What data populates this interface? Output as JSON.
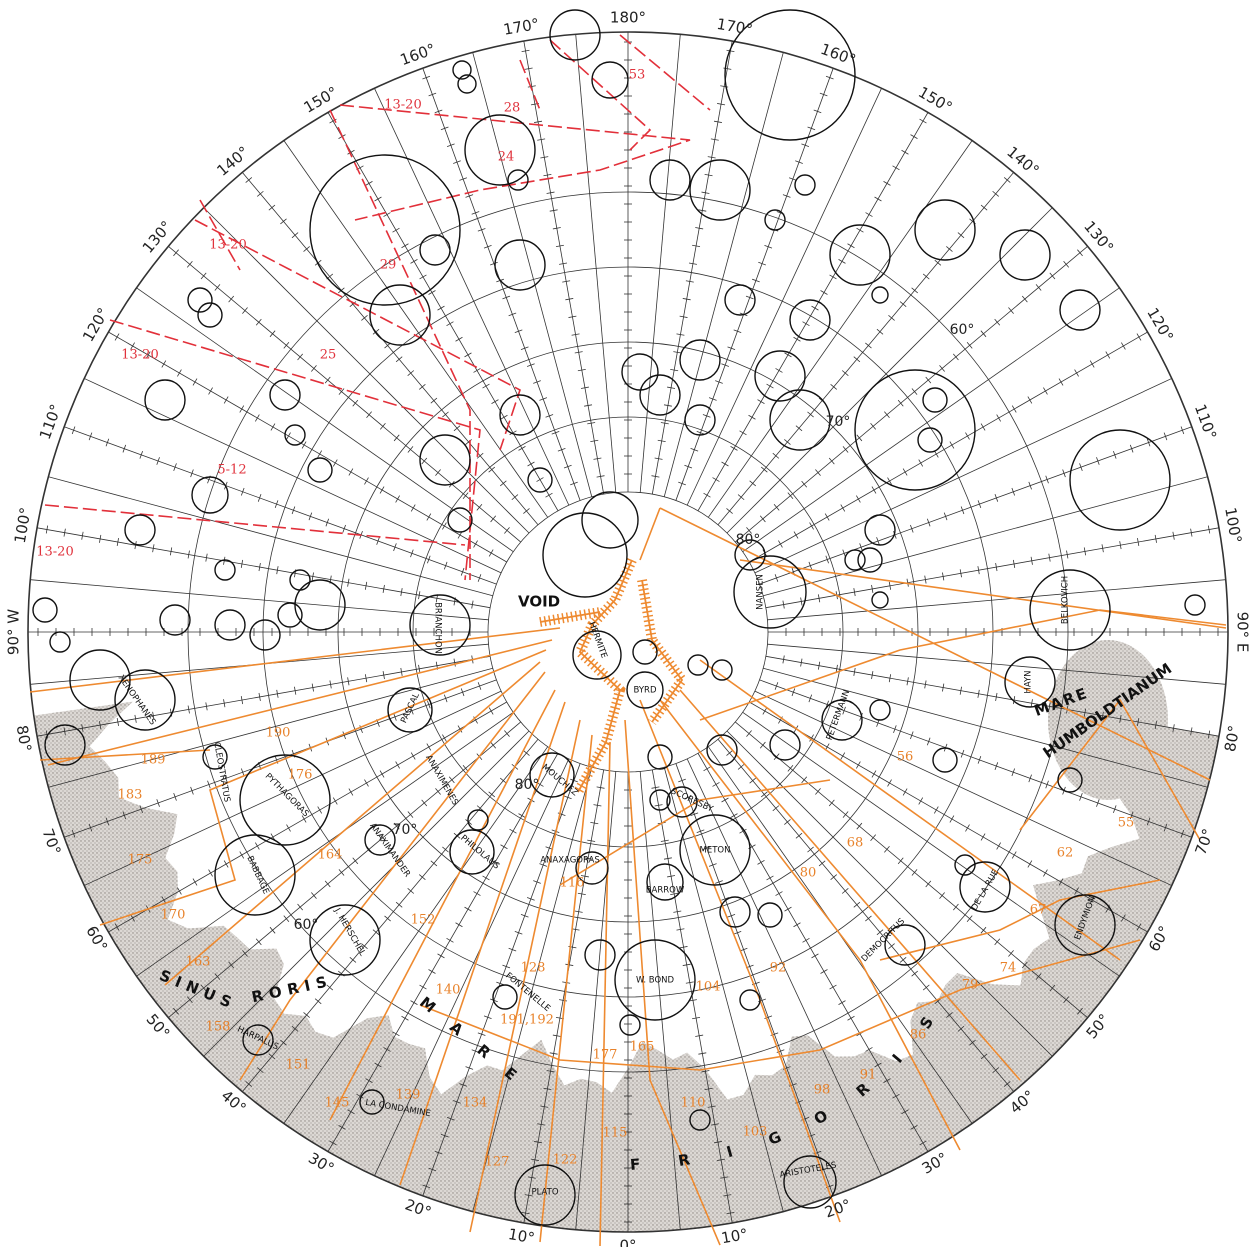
{
  "longitude_labels": [
    "180°",
    "170°",
    "160°",
    "150°",
    "140°",
    "130°",
    "120°",
    "110°",
    "100°",
    "90° E",
    "80°",
    "70°",
    "60°",
    "50°",
    "40°",
    "30°",
    "20°",
    "10°",
    "0°",
    "10°",
    "20°",
    "30°",
    "40°",
    "50°",
    "60°",
    "70°",
    "80°",
    "90° W",
    "100°",
    "110°",
    "120°",
    "130°",
    "140°",
    "150°",
    "160°",
    "170°"
  ],
  "latitude_labels": [
    "80°",
    "70°",
    "60°",
    "80°",
    "70°",
    "60°"
  ],
  "zone_labels_red": [
    "53",
    "28",
    "13-20",
    "24",
    "13-20",
    "29",
    "25",
    "13-20",
    "5-12",
    "13-20"
  ],
  "zone_labels_orange": [
    "190",
    "189",
    "183",
    "176",
    "175",
    "164",
    "170",
    "163",
    "158",
    "152",
    "151",
    "145",
    "139",
    "134",
    "140",
    "128",
    "127",
    "122",
    "115",
    "116",
    "191,192",
    "177",
    "165",
    "110",
    "103",
    "104",
    "92",
    "98",
    "91",
    "86",
    "79",
    "74",
    "80",
    "68",
    "56",
    "55",
    "62",
    "67"
  ],
  "crater_names": [
    "HERMITE",
    "BRIANCHON",
    "NANSEN",
    "BELKOVICH",
    "HAYN",
    "PETERMANN",
    "BYRD",
    "PASCAL",
    "XENOPHANES",
    "CLEOSTRATUS",
    "PYTHAGORAS",
    "ANAXIMENES",
    "MOUCHEZ",
    "SCORESBY",
    "BABBAGE",
    "ANAXIMANDER",
    "PHILOLAUS",
    "ANAXAGORAS",
    "METON",
    "BARROW",
    "J. HERSCHEL",
    "DE LA RUE",
    "ENDYMION",
    "DEMOCRITUS",
    "W. BOND",
    "FONTENELLE",
    "HARPALUS",
    "LA CONDAMINE",
    "PLATO",
    "ARISTOTELES"
  ],
  "region_names": [
    "VOID",
    "MARE",
    "HUMBOLDTIANUM",
    "SINUS",
    "RORIS",
    "MARE",
    "FRIGORIS"
  ]
}
